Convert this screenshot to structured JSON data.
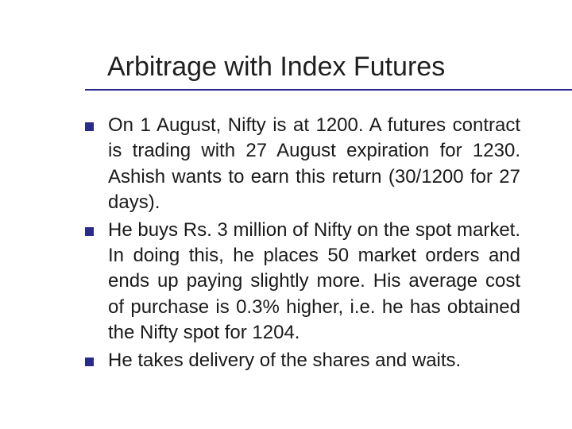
{
  "slide": {
    "title": "Arbitrage with Index Futures",
    "bullets": [
      "On 1 August, Nifty is at 1200. A futures contract is trading with 27 August expiration for 1230. Ashish wants to earn this return (30/1200 for 27 days).",
      "He buys Rs. 3 million of Nifty on the spot market. In doing this, he places 50 market orders and ends up paying slightly more. His average cost of purchase is 0.3% higher, i.e. he has obtained the Nifty spot for 1204.",
      "He takes delivery of the shares and waits."
    ]
  },
  "style": {
    "accent_color": "#2a2a8a",
    "title_color": "#1f1f1f",
    "text_color": "#1a1a1a",
    "background_color": "#ffffff",
    "title_fontsize": 34,
    "body_fontsize": 24,
    "bullet_size": 11,
    "underline_thickness": 2,
    "font_family": "Verdana"
  }
}
